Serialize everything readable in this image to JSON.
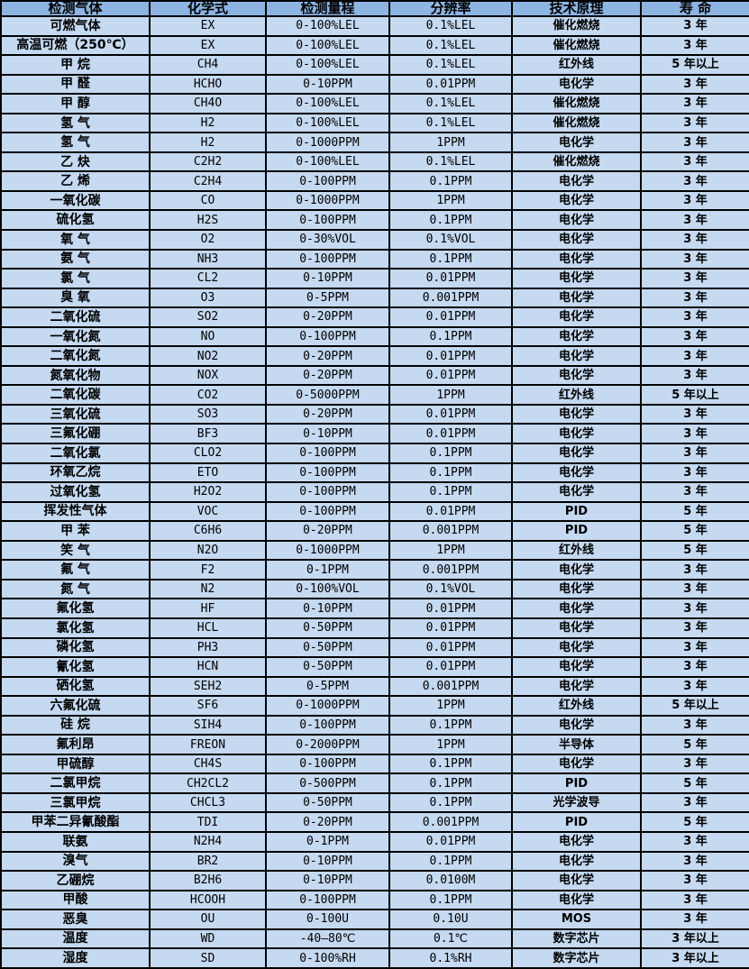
{
  "colors": {
    "header_bg": "#8db4e2",
    "row_bg": "#c5d9f1",
    "border": "#000000",
    "text": "#000000"
  },
  "table": {
    "columns": [
      "检测气体",
      "化学式",
      "检测量程",
      "分辨率",
      "技术原理",
      "寿 命"
    ],
    "rows": [
      [
        "可燃气体",
        "EX",
        "0-100%LEL",
        "0.1%LEL",
        "催化燃烧",
        "3 年"
      ],
      [
        "高温可燃（250℃）",
        "EX",
        "0-100%LEL",
        "0.1%LEL",
        "催化燃烧",
        "3 年"
      ],
      [
        "甲 烷",
        "CH4",
        "0-100%LEL",
        "0.1%LEL",
        "红外线",
        "5 年以上"
      ],
      [
        "甲 醛",
        "HCHO",
        "0-10PPM",
        "0.01PPM",
        "电化学",
        "3 年"
      ],
      [
        "甲 醇",
        "CH4O",
        "0-100%LEL",
        "0.1%LEL",
        "催化燃烧",
        "3 年"
      ],
      [
        "氢 气",
        "H2",
        "0-100%LEL",
        "0.1%LEL",
        "催化燃烧",
        "3 年"
      ],
      [
        "氢 气",
        "H2",
        "0-1000PPM",
        "1PPM",
        "电化学",
        "3 年"
      ],
      [
        "乙 炔",
        "C2H2",
        "0-100%LEL",
        "0.1%LEL",
        "催化燃烧",
        "3 年"
      ],
      [
        "乙 烯",
        "C2H4",
        "0-100PPM",
        "0.1PPM",
        "电化学",
        "3 年"
      ],
      [
        "一氧化碳",
        "CO",
        "0-1000PPM",
        "1PPM",
        "电化学",
        "3 年"
      ],
      [
        "硫化氢",
        "H2S",
        "0-100PPM",
        "0.1PPM",
        "电化学",
        "3 年"
      ],
      [
        "氧 气",
        "O2",
        "0-30%VOL",
        "0.1%VOL",
        "电化学",
        "3 年"
      ],
      [
        "氨 气",
        "NH3",
        "0-100PPM",
        "0.1PPM",
        "电化学",
        "3 年"
      ],
      [
        "氯 气",
        "CL2",
        "0-10PPM",
        "0.01PPM",
        "电化学",
        "3 年"
      ],
      [
        "臭 氧",
        "O3",
        "0-5PPM",
        "0.001PPM",
        "电化学",
        "3 年"
      ],
      [
        "二氧化硫",
        "SO2",
        "0-20PPM",
        "0.01PPM",
        "电化学",
        "3 年"
      ],
      [
        "一氧化氮",
        "NO",
        "0-100PPM",
        "0.1PPM",
        "电化学",
        "3 年"
      ],
      [
        "二氧化氮",
        "NO2",
        "0-20PPM",
        "0.01PPM",
        "电化学",
        "3 年"
      ],
      [
        "氮氧化物",
        "NOX",
        "0-20PPM",
        "0.01PPM",
        "电化学",
        "3 年"
      ],
      [
        "二氧化碳",
        "CO2",
        "0-5000PPM",
        "1PPM",
        "红外线",
        "5 年以上"
      ],
      [
        "三氧化硫",
        "SO3",
        "0-20PPM",
        "0.01PPM",
        "电化学",
        "3 年"
      ],
      [
        "三氟化硼",
        "BF3",
        "0-10PPM",
        "0.01PPM",
        "电化学",
        "3 年"
      ],
      [
        "二氧化氯",
        "CLO2",
        "0-100PPM",
        "0.1PPM",
        "电化学",
        "3 年"
      ],
      [
        "环氧乙烷",
        "ETO",
        "0-100PPM",
        "0.1PPM",
        "电化学",
        "3 年"
      ],
      [
        "过氧化氢",
        "H2O2",
        "0-100PPM",
        "0.1PPM",
        "电化学",
        "3 年"
      ],
      [
        "挥发性气体",
        "VOC",
        "0-100PPM",
        "0.01PPM",
        "PID",
        "5 年"
      ],
      [
        "甲 苯",
        "C6H6",
        "0-20PPM",
        "0.001PPM",
        "PID",
        "5 年"
      ],
      [
        "笑 气",
        "N2O",
        "0-1000PPM",
        "1PPM",
        "红外线",
        "5 年"
      ],
      [
        "氟 气",
        "F2",
        "0-1PPM",
        "0.001PPM",
        "电化学",
        "3 年"
      ],
      [
        "氮 气",
        "N2",
        "0-100%VOL",
        "0.1%VOL",
        "电化学",
        "3 年"
      ],
      [
        "氟化氢",
        "HF",
        "0-10PPM",
        "0.01PPM",
        "电化学",
        "3 年"
      ],
      [
        "氯化氢",
        "HCL",
        "0-50PPM",
        "0.01PPM",
        "电化学",
        "3 年"
      ],
      [
        "磷化氢",
        "PH3",
        "0-50PPM",
        "0.01PPM",
        "电化学",
        "3 年"
      ],
      [
        "氰化氢",
        "HCN",
        "0-50PPM",
        "0.01PPM",
        "电化学",
        "3 年"
      ],
      [
        "硒化氢",
        "SEH2",
        "0-5PPM",
        "0.001PPM",
        "电化学",
        "3 年"
      ],
      [
        "六氟化硫",
        "SF6",
        "0-1000PPM",
        "1PPM",
        "红外线",
        "5 年以上"
      ],
      [
        "硅 烷",
        "SIH4",
        "0-100PPM",
        "0.1PPM",
        "电化学",
        "3 年"
      ],
      [
        "氟利昂",
        "FREON",
        "0-2000PPM",
        "1PPM",
        "半导体",
        "5 年"
      ],
      [
        "甲硫醇",
        "CH4S",
        "0-100PPM",
        "0.1PPM",
        "电化学",
        "3 年"
      ],
      [
        "二氯甲烷",
        "CH2CL2",
        "0-500PPM",
        "0.1PPM",
        "PID",
        "5 年"
      ],
      [
        "三氯甲烷",
        "CHCL3",
        "0-50PPM",
        "0.1PPM",
        "光学波导",
        "3 年"
      ],
      [
        "甲苯二异氰酸酯",
        "TDI",
        "0-20PPM",
        "0.001PPM",
        "PID",
        "5 年"
      ],
      [
        "联氨",
        "N2H4",
        "0-1PPM",
        "0.01PPM",
        "电化学",
        "3 年"
      ],
      [
        "溴气",
        "BR2",
        "0-10PPM",
        "0.1PPM",
        "电化学",
        "3 年"
      ],
      [
        "乙硼烷",
        "B2H6",
        "0-10PPM",
        "0.0100M",
        "电化学",
        "3 年"
      ],
      [
        "甲酸",
        "HCOOH",
        "0-100PPM",
        "0.1PPM",
        "电化学",
        "3 年"
      ],
      [
        "恶臭",
        "OU",
        "0-100U",
        "0.10U",
        "MOS",
        "3 年"
      ],
      [
        "温度",
        "WD",
        "-40—80℃",
        "0.1℃",
        "数字芯片",
        "3 年以上"
      ],
      [
        "湿度",
        "SD",
        "0-100%RH",
        "0.1%RH",
        "数字芯片",
        "3 年以上"
      ]
    ]
  }
}
